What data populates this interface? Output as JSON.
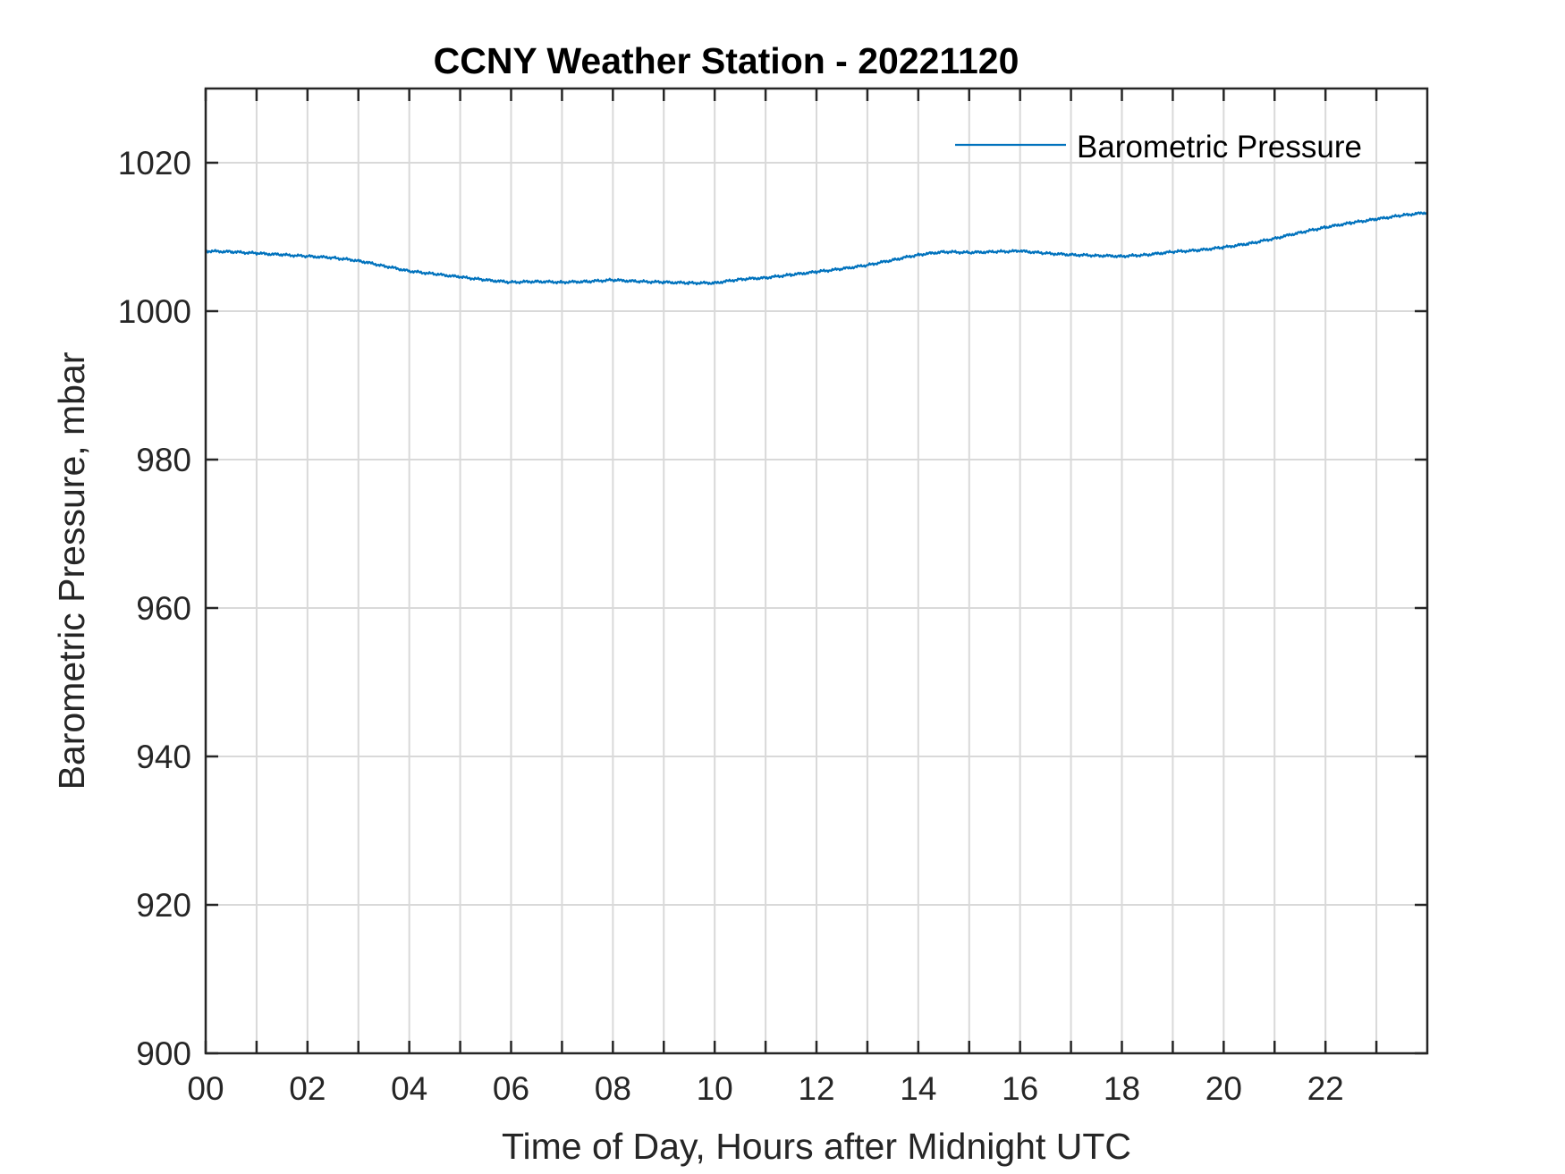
{
  "chart_data": {
    "type": "line",
    "title": "CCNY Weather Station - 20221120",
    "xlabel": "Time of Day, Hours after Midnight UTC",
    "ylabel": "Barometric Pressure, mbar",
    "xlim": [
      0,
      24
    ],
    "ylim": [
      900,
      1030
    ],
    "x_tick_values": [
      0,
      2,
      4,
      6,
      8,
      10,
      12,
      14,
      16,
      18,
      20,
      22
    ],
    "x_tick_labels": [
      "00",
      "02",
      "04",
      "06",
      "08",
      "10",
      "12",
      "14",
      "16",
      "18",
      "20",
      "22"
    ],
    "x_minor_tick_values": [
      1,
      3,
      5,
      7,
      9,
      11,
      13,
      15,
      17,
      19,
      21,
      23
    ],
    "y_tick_values": [
      900,
      920,
      940,
      960,
      980,
      1000,
      1020
    ],
    "y_tick_labels": [
      "900",
      "920",
      "940",
      "960",
      "980",
      "1000",
      "1020"
    ],
    "grid": true,
    "legend_position": "top-right",
    "series": [
      {
        "name": "Barometric Pressure",
        "color": "#0072BD",
        "x": [
          0,
          0.5,
          1,
          1.5,
          2,
          2.5,
          3,
          3.5,
          4,
          4.5,
          5,
          5.5,
          6,
          6.5,
          7,
          7.5,
          8,
          8.5,
          9,
          9.5,
          10,
          10.5,
          11,
          11.5,
          12,
          12.5,
          13,
          13.5,
          14,
          14.5,
          15,
          15.5,
          16,
          16.5,
          17,
          17.5,
          18,
          18.5,
          19,
          19.5,
          20,
          20.5,
          21,
          21.5,
          22,
          22.5,
          23,
          23.5,
          24
        ],
        "y": [
          1008.1,
          1008.0,
          1007.8,
          1007.6,
          1007.4,
          1007.2,
          1006.8,
          1006.1,
          1005.4,
          1005.0,
          1004.6,
          1004.2,
          1003.9,
          1004.0,
          1003.9,
          1004.0,
          1004.2,
          1004.0,
          1003.9,
          1003.8,
          1003.8,
          1004.3,
          1004.5,
          1004.9,
          1005.3,
          1005.7,
          1006.2,
          1006.9,
          1007.6,
          1008.0,
          1007.9,
          1008.0,
          1008.1,
          1007.8,
          1007.6,
          1007.5,
          1007.4,
          1007.6,
          1008.0,
          1008.2,
          1008.6,
          1009.1,
          1009.8,
          1010.6,
          1011.3,
          1011.9,
          1012.4,
          1012.9,
          1013.3
        ]
      }
    ]
  }
}
